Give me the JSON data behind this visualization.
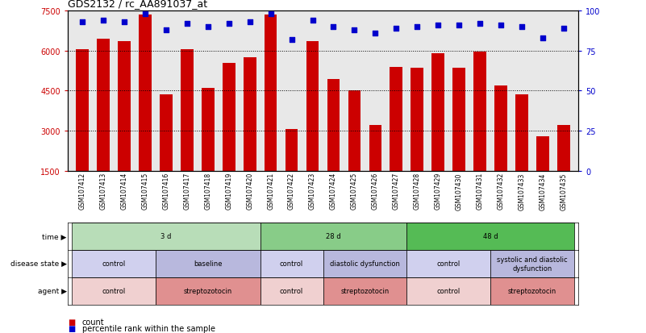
{
  "title": "GDS2132 / rc_AA891037_at",
  "samples": [
    "GSM107412",
    "GSM107413",
    "GSM107414",
    "GSM107415",
    "GSM107416",
    "GSM107417",
    "GSM107418",
    "GSM107419",
    "GSM107420",
    "GSM107421",
    "GSM107422",
    "GSM107423",
    "GSM107424",
    "GSM107425",
    "GSM107426",
    "GSM107427",
    "GSM107428",
    "GSM107429",
    "GSM107430",
    "GSM107431",
    "GSM107432",
    "GSM107433",
    "GSM107434",
    "GSM107435"
  ],
  "counts": [
    6050,
    6450,
    6350,
    7350,
    4350,
    6050,
    4600,
    5550,
    5750,
    7350,
    3050,
    6350,
    4950,
    4500,
    3200,
    5400,
    5350,
    5900,
    5350,
    5950,
    4700,
    4350,
    2800,
    3200
  ],
  "percentile": [
    93,
    94,
    93,
    98,
    88,
    92,
    90,
    92,
    93,
    98,
    82,
    94,
    90,
    88,
    86,
    89,
    90,
    91,
    91,
    92,
    91,
    90,
    83,
    89
  ],
  "ylim_left": [
    1500,
    7500
  ],
  "yticks_left": [
    1500,
    3000,
    4500,
    6000,
    7500
  ],
  "ylim_right": [
    0,
    100
  ],
  "yticks_right": [
    0,
    25,
    50,
    75,
    100
  ],
  "bar_color": "#cc0000",
  "dot_color": "#0000cc",
  "grid_color": "#000000",
  "axis_color_left": "#cc0000",
  "axis_color_right": "#0000cc",
  "time_groups": [
    {
      "label": "3 d",
      "start": 0,
      "end": 9,
      "color": "#b8ddb8"
    },
    {
      "label": "28 d",
      "start": 9,
      "end": 16,
      "color": "#88cc88"
    },
    {
      "label": "48 d",
      "start": 16,
      "end": 24,
      "color": "#55bb55"
    }
  ],
  "disease_groups": [
    {
      "label": "control",
      "start": 0,
      "end": 4,
      "color": "#d0d0ee"
    },
    {
      "label": "baseline",
      "start": 4,
      "end": 9,
      "color": "#b8b8dd"
    },
    {
      "label": "control",
      "start": 9,
      "end": 12,
      "color": "#d0d0ee"
    },
    {
      "label": "diastolic dysfunction",
      "start": 12,
      "end": 16,
      "color": "#b8b8dd"
    },
    {
      "label": "control",
      "start": 16,
      "end": 20,
      "color": "#d0d0ee"
    },
    {
      "label": "systolic and diastolic\ndysfunction",
      "start": 20,
      "end": 24,
      "color": "#b8b8dd"
    }
  ],
  "agent_groups": [
    {
      "label": "control",
      "start": 0,
      "end": 4,
      "color": "#f0d0d0"
    },
    {
      "label": "streptozotocin",
      "start": 4,
      "end": 9,
      "color": "#e09090"
    },
    {
      "label": "control",
      "start": 9,
      "end": 12,
      "color": "#f0d0d0"
    },
    {
      "label": "streptozotocin",
      "start": 12,
      "end": 16,
      "color": "#e09090"
    },
    {
      "label": "control",
      "start": 16,
      "end": 20,
      "color": "#f0d0d0"
    },
    {
      "label": "streptozotocin",
      "start": 20,
      "end": 24,
      "color": "#e09090"
    }
  ],
  "row_labels": [
    "time",
    "disease state",
    "agent"
  ],
  "background_color": "#ffffff",
  "plot_bg_color": "#e8e8e8"
}
